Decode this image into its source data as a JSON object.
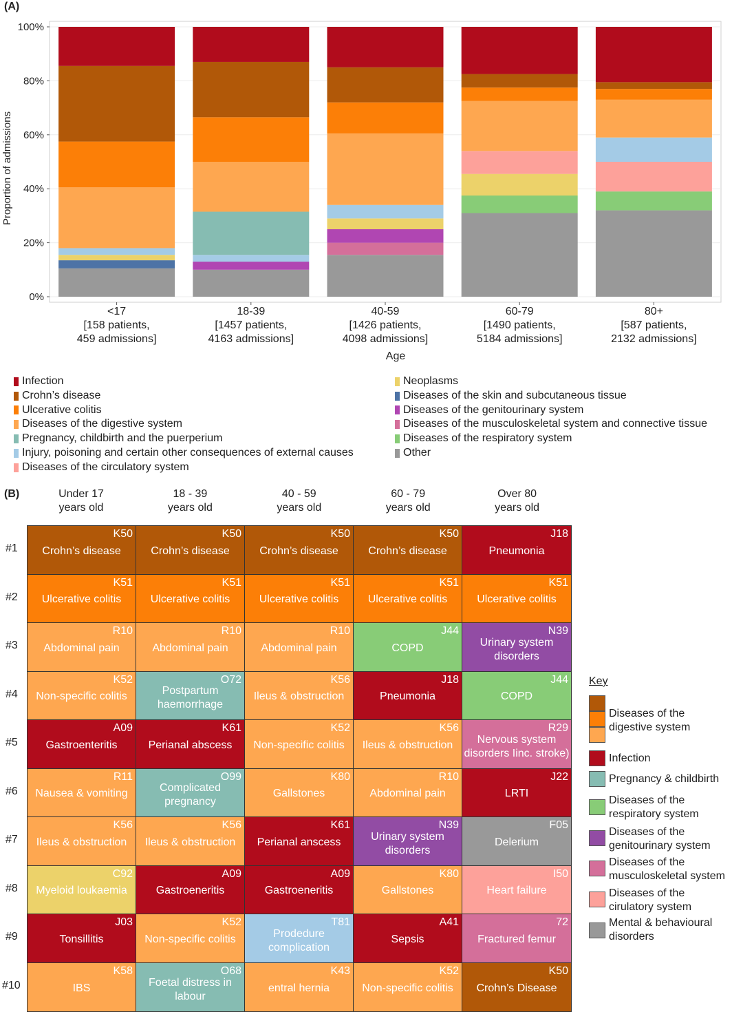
{
  "panel_a": {
    "label": "(A)"
  },
  "panel_b": {
    "label": "(B)"
  },
  "chart_data": {
    "type": "bar",
    "stacked": true,
    "ylabel": "Proportion of admissions",
    "xlabel": "Age",
    "yticks": [
      "0%",
      "20%",
      "40%",
      "60%",
      "80%",
      "100%"
    ],
    "ylim": [
      0,
      100
    ],
    "categories": [
      {
        "name": "<17",
        "patients": "[158 patients,",
        "admissions": "459 admissions]"
      },
      {
        "name": "18-39",
        "patients": "[1457 patients,",
        "admissions": "4163 admissions]"
      },
      {
        "name": "40-59",
        "patients": "[1426 patients,",
        "admissions": "4098 admissions]"
      },
      {
        "name": "60-79",
        "patients": "[1490 patients,",
        "admissions": "5184 admissions]"
      },
      {
        "name": "80+",
        "patients": "[587 patients,",
        "admissions": "2132 admissions]"
      }
    ],
    "series": [
      {
        "name": "Other",
        "color": "#999999",
        "values": [
          10.5,
          10,
          15.5,
          31,
          32
        ]
      },
      {
        "name": "Diseases of the respiratory system",
        "color": "#88cc77",
        "values": [
          0,
          0,
          0,
          6.5,
          7
        ]
      },
      {
        "name": "Diseases of the musculoskeletal system and connective tissue",
        "color": "#d46f9a",
        "values": [
          0,
          0,
          4.5,
          0,
          0
        ]
      },
      {
        "name": "Diseases of the genitourinary system",
        "color": "#b046b2",
        "values": [
          0,
          3,
          5,
          0,
          0
        ]
      },
      {
        "name": "Diseases of the skin and subcutaneous tissue",
        "color": "#4d73a6",
        "values": [
          3,
          0,
          0,
          0,
          0
        ]
      },
      {
        "name": "Neoplasms",
        "color": "#ecd26a",
        "values": [
          2,
          0,
          4,
          8,
          0
        ]
      },
      {
        "name": "Diseases of the circulatory system",
        "color": "#fda19a",
        "values": [
          0,
          0,
          0,
          8.5,
          11
        ]
      },
      {
        "name": "Injury, poisoning and certain other consequences of external causes",
        "color": "#a4cbe6",
        "values": [
          2.5,
          2.5,
          5,
          0,
          9
        ]
      },
      {
        "name": "Pregnancy, childbirth and the puerperium",
        "color": "#86bcb2",
        "values": [
          0,
          16,
          0,
          0,
          0
        ]
      },
      {
        "name": "Diseases of the digestive system",
        "color": "#fea750",
        "values": [
          22.5,
          18.5,
          26.5,
          18.5,
          14
        ]
      },
      {
        "name": "Ulcerative colitis",
        "color": "#fc7f07",
        "values": [
          17,
          16.5,
          11.5,
          5,
          4
        ]
      },
      {
        "name": "Crohn's disease",
        "color": "#b15808",
        "values": [
          28,
          20.5,
          13,
          5,
          2.5
        ]
      },
      {
        "name": "Infection",
        "color": "#b10c1c",
        "values": [
          14.5,
          13,
          15,
          17.5,
          20.5
        ]
      }
    ]
  },
  "legend_a": {
    "left": [
      {
        "label": "Infection",
        "color": "#b10c1c"
      },
      {
        "label": "Crohn’s disease",
        "color": "#b15808"
      },
      {
        "label": "Ulcerative colitis",
        "color": "#fc7f07"
      },
      {
        "label": "Diseases of the digestive system",
        "color": "#fea750"
      },
      {
        "label": "Pregnancy, childbirth and the puerperium",
        "color": "#86bcb2"
      },
      {
        "label": "Injury, poisoning and certain other consequences of external causes",
        "color": "#a4cbe6"
      },
      {
        "label": "Diseases of the circulatory system",
        "color": "#fda19a"
      }
    ],
    "right": [
      {
        "label": "Neoplasms",
        "color": "#ecd26a"
      },
      {
        "label": "Diseases of the skin and subcutaneous tissue",
        "color": "#4d73a6"
      },
      {
        "label": "Diseases of the genitourinary system",
        "color": "#b046b2"
      },
      {
        "label": "Diseases of the musculoskeletal system and connective tissue",
        "color": "#d46f9a"
      },
      {
        "label": "Diseases of the respiratory system",
        "color": "#88cc77"
      },
      {
        "label": "Other",
        "color": "#999999"
      }
    ]
  },
  "table_b": {
    "columns": [
      [
        "Under 17",
        "years old"
      ],
      [
        "18 - 39",
        "years old"
      ],
      [
        "40 - 59",
        "years old"
      ],
      [
        "60 - 79",
        "years old"
      ],
      [
        "Over 80",
        "years old"
      ]
    ],
    "rows": [
      {
        "rank": "#1",
        "cells": [
          {
            "code": "K50",
            "name": "Crohn’s disease",
            "color": "#b15808"
          },
          {
            "code": "K50",
            "name": "Crohn’s disease",
            "color": "#b15808"
          },
          {
            "code": "K50",
            "name": "Crohn’s disease",
            "color": "#b15808"
          },
          {
            "code": "K50",
            "name": "Crohn’s disease",
            "color": "#b15808"
          },
          {
            "code": "J18",
            "name": "Pneumonia",
            "color": "#b10c1c"
          }
        ]
      },
      {
        "rank": "#2",
        "cells": [
          {
            "code": "K51",
            "name": "Ulcerative colitis",
            "color": "#fc7f07"
          },
          {
            "code": "K51",
            "name": "Ulcerative colitis",
            "color": "#fc7f07"
          },
          {
            "code": "K51",
            "name": "Ulcerative colitis",
            "color": "#fc7f07"
          },
          {
            "code": "K51",
            "name": "Ulcerative colitis",
            "color": "#fc7f07"
          },
          {
            "code": "K51",
            "name": "Ulcerative colitis",
            "color": "#fc7f07"
          }
        ]
      },
      {
        "rank": "#3",
        "cells": [
          {
            "code": "R10",
            "name": "Abdominal pain",
            "color": "#fea750"
          },
          {
            "code": "R10",
            "name": "Abdominal pain",
            "color": "#fea750"
          },
          {
            "code": "R10",
            "name": "Abdominal pain",
            "color": "#fea750"
          },
          {
            "code": "J44",
            "name": "COPD",
            "color": "#88cc77"
          },
          {
            "code": "N39",
            "name": "Urinary system disorders",
            "color": "#924ca4"
          }
        ]
      },
      {
        "rank": "#4",
        "cells": [
          {
            "code": "K52",
            "name": "Non-specific colitis",
            "color": "#fea750"
          },
          {
            "code": "O72",
            "name": "Postpartum haemorrhage",
            "color": "#86bcb2"
          },
          {
            "code": "K56",
            "name": "Ileus & obstruction",
            "color": "#fea750"
          },
          {
            "code": "J18",
            "name": "Pneumonia",
            "color": "#b10c1c"
          },
          {
            "code": "J44",
            "name": "COPD",
            "color": "#88cc77"
          }
        ]
      },
      {
        "rank": "#5",
        "cells": [
          {
            "code": "A09",
            "name": "Gastroenteritis",
            "color": "#b10c1c"
          },
          {
            "code": "K61",
            "name": "Perianal abscess",
            "color": "#b10c1c"
          },
          {
            "code": "K52",
            "name": "Non-specific colitis",
            "color": "#fea750"
          },
          {
            "code": "K56",
            "name": "Ileus & obstruction",
            "color": "#fea750"
          },
          {
            "code": "R29",
            "name": "Nervous system disorders Iinc. stroke)",
            "color": "#d46f9a"
          }
        ]
      },
      {
        "rank": "#6",
        "cells": [
          {
            "code": "R11",
            "name": "Nausea & vomiting",
            "color": "#fea750"
          },
          {
            "code": "O99",
            "name": "Complicated pregnancy",
            "color": "#86bcb2"
          },
          {
            "code": "K80",
            "name": "Gallstones",
            "color": "#fea750"
          },
          {
            "code": "R10",
            "name": "Abdominal pain",
            "color": "#fea750"
          },
          {
            "code": "J22",
            "name": "LRTI",
            "color": "#b10c1c"
          }
        ]
      },
      {
        "rank": "#7",
        "cells": [
          {
            "code": "K56",
            "name": "Ileus & obstruction",
            "color": "#fea750"
          },
          {
            "code": "K56",
            "name": "Ileus & obstruction",
            "color": "#fea750"
          },
          {
            "code": "K61",
            "name": "Perianal anscess",
            "color": "#b10c1c"
          },
          {
            "code": "N39",
            "name": "Urinary system disorders",
            "color": "#924ca4"
          },
          {
            "code": "F05",
            "name": "Delerium",
            "color": "#999999"
          }
        ]
      },
      {
        "rank": "#8",
        "cells": [
          {
            "code": "C92",
            "name": "Myeloid loukaemia",
            "color": "#ecd26a"
          },
          {
            "code": "A09",
            "name": "Gastroeneritis",
            "color": "#b10c1c"
          },
          {
            "code": "A09",
            "name": "Gastroeneritis",
            "color": "#b10c1c"
          },
          {
            "code": "K80",
            "name": "Gallstones",
            "color": "#fea750"
          },
          {
            "code": "I50",
            "name": "Heart failure",
            "color": "#fda19a"
          }
        ]
      },
      {
        "rank": "#9",
        "cells": [
          {
            "code": "J03",
            "name": "Tonsillitis",
            "color": "#b10c1c"
          },
          {
            "code": "K52",
            "name": "Non-specific colitis",
            "color": "#fea750"
          },
          {
            "code": "T81",
            "name": "Prodedure complication",
            "color": "#a4cbe6"
          },
          {
            "code": "A41",
            "name": "Sepsis",
            "color": "#b10c1c"
          },
          {
            "code": "72",
            "name": "Fractured femur",
            "color": "#d46f9a"
          }
        ]
      },
      {
        "rank": "#10",
        "cells": [
          {
            "code": "K58",
            "name": "IBS",
            "color": "#fea750"
          },
          {
            "code": "O68",
            "name": "Foetal distress in labour",
            "color": "#86bcb2"
          },
          {
            "code": "K43",
            "name": "entral hernia",
            "color": "#fea750"
          },
          {
            "code": "K52",
            "name": "Non-specific colitis",
            "color": "#fea750"
          },
          {
            "code": "K50",
            "name": "Crohn’s Disease",
            "color": "#b15808"
          }
        ]
      }
    ]
  },
  "key_b": {
    "title": "Key",
    "digestive": {
      "label": "Diseases of the digestive system",
      "colors": [
        "#b15808",
        "#fc7f07",
        "#fea750"
      ]
    },
    "items": [
      {
        "label": "Infection",
        "color": "#b10c1c"
      },
      {
        "label": "Pregnancy & childbirth",
        "color": "#86bcb2"
      },
      {
        "label": "Diseases of the respiratory system",
        "color": "#88cc77"
      },
      {
        "label": "Diseases of the genitourinary system",
        "color": "#924ca4"
      },
      {
        "label": "Diseases of the musculoskeletal system",
        "color": "#d46f9a"
      },
      {
        "label": "Diseases of the cirulatory system",
        "color": "#fda19a"
      },
      {
        "label": "Mental & behavioural disorders",
        "color": "#999999"
      }
    ]
  }
}
